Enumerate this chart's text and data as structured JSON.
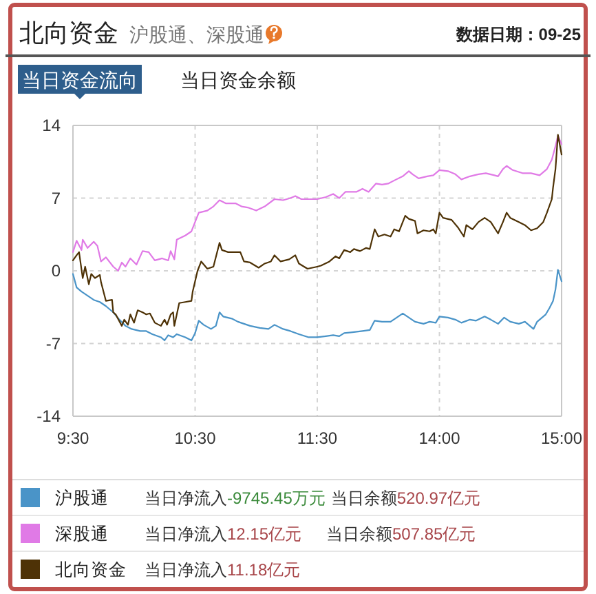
{
  "chart_data": [
    {
      "type": "line",
      "title": "北向资金",
      "subtitle": "沪股通、深股通",
      "annotations": [
        "数据日期：09-25",
        "当日资金流向",
        "当日资金余额",
        "当日净流入-9745.45万元",
        "当日余额520.97亿元",
        "当日净流入12.15亿元",
        "当日余额507.85亿元",
        "当日净流入11.18亿元"
      ],
      "xlim": [
        9.5,
        11.5
      ],
      "xticks": [
        {
          "value": 9.5,
          "label": "9:30"
        },
        {
          "value": 10.5,
          "label": "10:30"
        },
        {
          "value": 11.5,
          "label": "11:30"
        }
      ],
      "ylim": [
        -14,
        14
      ],
      "yticks": [
        -14,
        -7,
        0,
        7,
        14
      ],
      "grid": true,
      "legend": "bottom",
      "line_style": "solid",
      "series": [
        {
          "name": "沪股通",
          "color": "#4a94c8",
          "x": [
            9.5,
            9.53,
            9.57,
            9.62,
            9.67,
            9.72,
            9.77,
            9.83,
            9.88,
            9.93,
            9.98,
            10.05,
            10.1,
            10.15,
            10.22,
            10.25,
            10.28,
            10.32,
            10.35,
            10.42,
            10.47,
            10.5,
            10.53,
            10.57,
            10.63,
            10.67,
            10.7,
            10.73,
            10.8,
            10.85,
            10.9,
            10.95,
            11.03,
            11.1,
            11.15,
            11.22,
            11.28,
            11.35,
            11.43,
            11.5
          ],
          "values": [
            -0.3,
            -1.6,
            -2.0,
            -2.4,
            -2.8,
            -3.0,
            -3.4,
            -4.0,
            -4.7,
            -5.3,
            -5.6,
            -5.8,
            -5.8,
            -6.1,
            -6.4,
            -6.7,
            -6.2,
            -6.4,
            -6.1,
            -6.4,
            -6.7,
            -6.0,
            -4.8,
            -5.2,
            -5.6,
            -5.3,
            -4.0,
            -4.4,
            -4.6,
            -4.9,
            -5.1,
            -5.3,
            -5.5,
            -5.6,
            -5.2,
            -5.6,
            -5.8,
            -6.1,
            -6.4,
            -6.4
          ]
        },
        {
          "name": "深股通",
          "color": "#e07ae6",
          "x": [
            9.5,
            9.53,
            9.57,
            9.58,
            9.62,
            9.67,
            9.7,
            9.73,
            9.77,
            9.83,
            9.87,
            9.9,
            9.93,
            9.97,
            10.02,
            10.07,
            10.12,
            10.17,
            10.23,
            10.28,
            10.3,
            10.33,
            10.35,
            10.42,
            10.47,
            10.5,
            10.53,
            10.6,
            10.65,
            10.7,
            10.75,
            10.83,
            10.88,
            10.93,
            11.0,
            11.07,
            11.15,
            11.22,
            11.28,
            11.32,
            11.37,
            11.45,
            11.5
          ],
          "values": [
            1.8,
            2.9,
            2.0,
            3.0,
            2.2,
            2.8,
            2.4,
            0.9,
            1.3,
            0.4,
            0.0,
            0.8,
            0.4,
            1.2,
            0.6,
            1.9,
            1.8,
            1.0,
            1.2,
            1.0,
            1.9,
            1.1,
            3.0,
            3.4,
            3.8,
            4.7,
            5.6,
            5.8,
            6.2,
            6.8,
            6.5,
            6.5,
            6.2,
            6.1,
            5.8,
            6.2,
            6.9,
            6.8,
            7.0,
            7.2,
            6.9,
            6.9,
            6.9
          ]
        },
        {
          "name": "北向资金",
          "color": "#4e3206",
          "x": [
            9.5,
            9.53,
            9.55,
            9.58,
            9.6,
            9.63,
            9.65,
            9.68,
            9.72,
            9.73,
            9.77,
            9.82,
            9.83,
            9.85,
            9.9,
            9.92,
            9.95,
            9.97,
            10.0,
            10.03,
            10.07,
            10.1,
            10.13,
            10.17,
            10.22,
            10.25,
            10.27,
            10.3,
            10.32,
            10.33,
            10.37,
            10.42,
            10.47,
            10.48,
            10.52,
            10.55,
            10.6,
            10.65,
            10.7,
            10.72,
            10.77,
            10.83,
            10.87,
            10.9,
            10.95,
            11.02,
            11.07,
            11.12,
            11.15,
            11.2,
            11.27,
            11.32,
            11.35,
            11.42,
            11.5
          ],
          "values": [
            1.0,
            1.5,
            1.8,
            -0.7,
            0.4,
            -1.3,
            -0.3,
            -0.7,
            -0.4,
            -1.1,
            -2.9,
            -2.8,
            -4.0,
            -4.2,
            -5.3,
            -4.7,
            -5.2,
            -4.2,
            -5.0,
            -3.8,
            -4.0,
            -4.2,
            -4.1,
            -5.0,
            -5.3,
            -4.7,
            -5.2,
            -4.2,
            -4.0,
            -5.3,
            -3.1,
            -3.0,
            -2.9,
            -2.0,
            0.0,
            0.9,
            0.2,
            0.4,
            2.7,
            2.0,
            1.8,
            1.8,
            1.8,
            0.9,
            0.8,
            0.3,
            0.7,
            0.9,
            1.5,
            0.9,
            1.1,
            1.5,
            0.7,
            0.2,
            0.4
          ]
        }
      ]
    },
    {
      "type": "line",
      "xlim": [
        13,
        15
      ],
      "xticks": [
        {
          "value": 14,
          "label": "14:00"
        },
        {
          "value": 15,
          "label": "15:00"
        }
      ],
      "ylim": [
        -14,
        14
      ],
      "yticks": [
        -14,
        -7,
        0,
        7,
        14
      ],
      "tick_labels": "x",
      "grid": true,
      "line_style": "solid",
      "series": [
        {
          "color": "#4a94c8",
          "x": [
            13.0,
            13.07,
            13.13,
            13.18,
            13.22,
            13.3,
            13.37,
            13.43,
            13.47,
            13.53,
            13.6,
            13.65,
            13.7,
            13.75,
            13.8,
            13.87,
            13.92,
            13.97,
            14.0,
            14.07,
            14.13,
            14.18,
            14.25,
            14.3,
            14.37,
            14.42,
            14.48,
            14.53,
            14.58,
            14.65,
            14.7,
            14.77,
            14.8,
            14.87,
            14.9,
            14.93,
            14.95,
            14.97,
            15.0
          ],
          "values": [
            -6.4,
            -6.3,
            -6.2,
            -6.3,
            -6.0,
            -5.9,
            -5.8,
            -5.7,
            -4.8,
            -4.9,
            -4.9,
            -4.5,
            -4.1,
            -4.5,
            -4.9,
            -5.1,
            -4.9,
            -5.0,
            -4.4,
            -4.5,
            -4.7,
            -5.0,
            -4.7,
            -4.8,
            -4.4,
            -4.7,
            -5.1,
            -4.5,
            -4.9,
            -5.1,
            -4.9,
            -5.6,
            -4.9,
            -4.2,
            -3.6,
            -2.9,
            -1.8,
            0.1,
            -1.0
          ]
        },
        {
          "color": "#e07ae6",
          "x": [
            13.0,
            13.07,
            13.13,
            13.18,
            13.23,
            13.32,
            13.37,
            13.42,
            13.48,
            13.53,
            13.58,
            13.63,
            13.7,
            13.75,
            13.78,
            13.83,
            13.9,
            13.95,
            14.0,
            14.07,
            14.13,
            14.18,
            14.25,
            14.32,
            14.38,
            14.45,
            14.48,
            14.52,
            14.55,
            14.6,
            14.68,
            14.75,
            14.82,
            14.88,
            14.92,
            14.95,
            14.97,
            15.0
          ],
          "values": [
            6.9,
            7.1,
            7.4,
            7.0,
            7.6,
            7.6,
            7.9,
            7.6,
            8.4,
            8.3,
            8.4,
            8.7,
            9.1,
            9.6,
            9.3,
            8.9,
            9.1,
            9.2,
            9.7,
            9.6,
            9.3,
            8.8,
            9.1,
            9.3,
            9.4,
            9.2,
            9.1,
            9.8,
            10.1,
            9.7,
            9.4,
            9.4,
            9.2,
            9.8,
            10.7,
            12.0,
            13.0,
            12.2
          ]
        },
        {
          "color": "#4e3206",
          "x": [
            13.0,
            13.03,
            13.1,
            13.15,
            13.18,
            13.22,
            13.27,
            13.3,
            13.35,
            13.4,
            13.43,
            13.47,
            13.5,
            13.55,
            13.6,
            13.63,
            13.67,
            13.72,
            13.75,
            13.8,
            13.82,
            13.87,
            13.92,
            13.95,
            13.97,
            14.0,
            14.03,
            14.1,
            14.15,
            14.2,
            14.22,
            14.27,
            14.32,
            14.37,
            14.42,
            14.48,
            14.52,
            14.55,
            14.58,
            14.65,
            14.7,
            14.75,
            14.8,
            14.85,
            14.88,
            14.92,
            14.93,
            14.95,
            14.97,
            15.0
          ],
          "values": [
            0.4,
            0.5,
            0.9,
            1.4,
            1.2,
            2.0,
            1.8,
            2.1,
            1.9,
            2.2,
            2.1,
            4.0,
            3.3,
            3.5,
            3.3,
            4.0,
            3.8,
            5.3,
            5.0,
            4.8,
            3.6,
            3.9,
            3.8,
            4.0,
            3.6,
            5.6,
            5.1,
            4.9,
            4.2,
            3.3,
            4.4,
            4.0,
            4.7,
            5.1,
            4.7,
            3.6,
            4.7,
            5.6,
            5.1,
            4.7,
            4.4,
            3.9,
            4.1,
            4.7,
            5.6,
            6.9,
            8.0,
            9.8,
            13.1,
            11.2
          ]
        }
      ]
    }
  ]
}
